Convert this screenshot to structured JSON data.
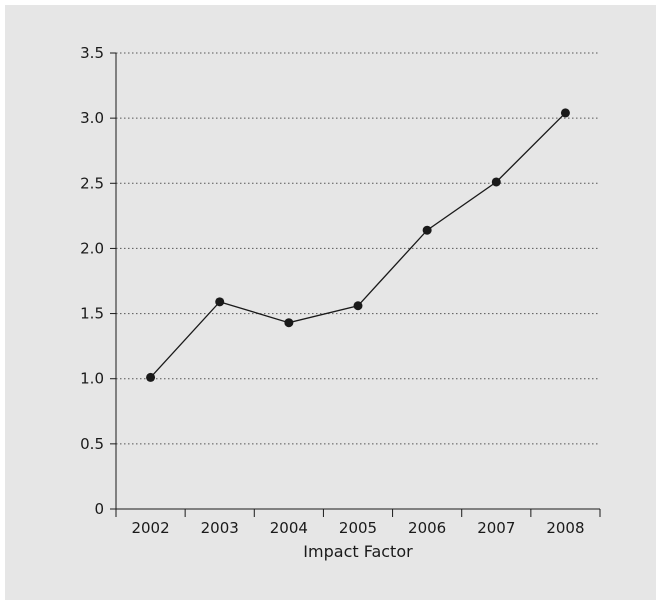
{
  "chart_data": {
    "type": "line",
    "title": "",
    "xlabel": "Impact Factor",
    "ylabel": "",
    "categories": [
      "2002",
      "2003",
      "2004",
      "2005",
      "2006",
      "2007",
      "2008"
    ],
    "series": [
      {
        "values": [
          1.01,
          1.59,
          1.43,
          1.56,
          2.14,
          2.51,
          3.04
        ]
      }
    ],
    "ylim": [
      0,
      3.5
    ],
    "yticks": [
      0,
      0.5,
      1.0,
      1.5,
      2.0,
      2.5,
      3.0,
      3.5
    ],
    "ytick_labels": [
      "0",
      "0.5",
      "1.0",
      "1.5",
      "2.0",
      "2.5",
      "3.0",
      "3.5"
    ],
    "grid": "horizontal-dotted",
    "colors": {
      "background": "#e6e6e6",
      "line": "#1a1a1a",
      "marker": "#1a1a1a",
      "grid": "#555555"
    }
  }
}
